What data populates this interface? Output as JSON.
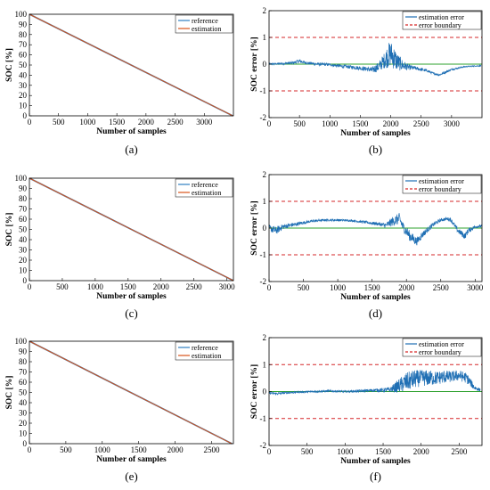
{
  "figure": {
    "colors": {
      "reference": "#2e7fc1",
      "estimation": "#d95319",
      "error_line": "#1f6fb4",
      "zero_line": "#2ca02c",
      "boundary": "#d62728",
      "axes": "#000000"
    }
  },
  "chart_data": [
    {
      "type": "line",
      "caption": "(a)",
      "xlabel": "Number of samples",
      "ylabel": "SOC [%]",
      "xlim": [
        0,
        3500
      ],
      "ylim": [
        0,
        100
      ],
      "xticks": [
        0,
        500,
        1000,
        1500,
        2000,
        2500,
        3000
      ],
      "yticks": [
        0,
        10,
        20,
        30,
        40,
        50,
        60,
        70,
        80,
        90,
        100
      ],
      "legend": "top-right",
      "series": [
        {
          "name": "reference",
          "x": [
            0,
            3490
          ],
          "y": [
            100,
            0
          ]
        },
        {
          "name": "estimation",
          "x": [
            0,
            3490
          ],
          "y": [
            100,
            0
          ]
        }
      ]
    },
    {
      "type": "line",
      "caption": "(b)",
      "xlabel": "Number of samples",
      "ylabel": "SOC error [%]",
      "xlim": [
        0,
        3500
      ],
      "ylim": [
        -2,
        2
      ],
      "xticks": [
        0,
        500,
        1000,
        1500,
        2000,
        2500,
        3000
      ],
      "yticks": [
        -2,
        -1,
        0,
        1,
        2
      ],
      "legend": "top-right",
      "series": [
        {
          "name": "estimation error",
          "x": [
            0,
            200,
            400,
            500,
            600,
            800,
            1000,
            1200,
            1400,
            1600,
            1700,
            1800,
            1900,
            1950,
            2000,
            2050,
            2100,
            2200,
            2300,
            2400,
            2500,
            2600,
            2700,
            2800,
            2900,
            3000,
            3100,
            3200,
            3300,
            3490
          ],
          "y": [
            0.0,
            0.02,
            0.05,
            0.12,
            0.05,
            0.0,
            -0.02,
            -0.08,
            -0.12,
            -0.18,
            -0.22,
            -0.1,
            0.15,
            0.3,
            0.4,
            0.25,
            0.1,
            -0.05,
            -0.12,
            -0.15,
            -0.2,
            -0.25,
            -0.35,
            -0.4,
            -0.3,
            -0.2,
            -0.15,
            -0.1,
            -0.08,
            -0.06
          ],
          "noise": [
            0.03,
            0.04,
            0.05,
            0.08,
            0.05,
            0.06,
            0.05,
            0.06,
            0.07,
            0.08,
            0.12,
            0.18,
            0.3,
            0.45,
            0.5,
            0.45,
            0.35,
            0.2,
            0.1,
            0.07,
            0.06,
            0.05,
            0.04,
            0.04,
            0.05,
            0.04,
            0.03,
            0.02,
            0.02,
            0.02
          ]
        },
        {
          "name": "error boundary",
          "values": [
            1,
            -1
          ]
        }
      ]
    },
    {
      "type": "line",
      "caption": "(c)",
      "xlabel": "Number of samples",
      "ylabel": "SOC [%]",
      "xlim": [
        0,
        3100
      ],
      "ylim": [
        0,
        100
      ],
      "xticks": [
        0,
        500,
        1000,
        1500,
        2000,
        2500,
        3000
      ],
      "yticks": [
        0,
        10,
        20,
        30,
        40,
        50,
        60,
        70,
        80,
        90,
        100
      ],
      "legend": "top-right",
      "series": [
        {
          "name": "reference",
          "x": [
            0,
            3100
          ],
          "y": [
            100,
            0
          ]
        },
        {
          "name": "estimation",
          "x": [
            0,
            3100
          ],
          "y": [
            100,
            0
          ]
        }
      ]
    },
    {
      "type": "line",
      "caption": "(d)",
      "xlabel": "Number of samples",
      "ylabel": "SOC error [%]",
      "xlim": [
        0,
        3100
      ],
      "ylim": [
        -2,
        2
      ],
      "xticks": [
        0,
        500,
        1000,
        1500,
        2000,
        2500,
        3000
      ],
      "yticks": [
        -2,
        -1,
        0,
        1,
        2
      ],
      "legend": "top-right",
      "series": [
        {
          "name": "estimation error",
          "x": [
            0,
            100,
            200,
            400,
            600,
            800,
            1000,
            1200,
            1400,
            1600,
            1700,
            1800,
            1900,
            1950,
            2050,
            2150,
            2250,
            2400,
            2500,
            2600,
            2650,
            2750,
            2850,
            2900,
            3000,
            3100
          ],
          "y": [
            0.0,
            -0.1,
            0.05,
            0.15,
            0.25,
            0.3,
            0.3,
            0.28,
            0.22,
            0.15,
            0.1,
            0.25,
            0.35,
            0.05,
            -0.3,
            -0.5,
            -0.2,
            0.15,
            0.3,
            0.35,
            0.3,
            -0.1,
            -0.3,
            -0.1,
            0.05,
            0.08
          ],
          "noise": [
            0.12,
            0.15,
            0.1,
            0.07,
            0.05,
            0.04,
            0.04,
            0.04,
            0.05,
            0.06,
            0.1,
            0.18,
            0.22,
            0.18,
            0.2,
            0.15,
            0.12,
            0.08,
            0.06,
            0.06,
            0.08,
            0.1,
            0.12,
            0.1,
            0.06,
            0.05
          ]
        },
        {
          "name": "error boundary",
          "values": [
            1,
            -1
          ]
        }
      ]
    },
    {
      "type": "line",
      "caption": "(e)",
      "xlabel": "Number of samples",
      "ylabel": "SOC [%]",
      "xlim": [
        0,
        2800
      ],
      "ylim": [
        0,
        100
      ],
      "xticks": [
        0,
        500,
        1000,
        1500,
        2000,
        2500
      ],
      "yticks": [
        0,
        10,
        20,
        30,
        40,
        50,
        60,
        70,
        80,
        90,
        100
      ],
      "legend": "top-right",
      "series": [
        {
          "name": "reference",
          "x": [
            0,
            2780
          ],
          "y": [
            100,
            0
          ]
        },
        {
          "name": "estimation",
          "x": [
            0,
            2780
          ],
          "y": [
            100,
            0
          ]
        }
      ]
    },
    {
      "type": "line",
      "caption": "(f)",
      "xlabel": "Number of samples",
      "ylabel": "SOC error [%]",
      "xlim": [
        0,
        2800
      ],
      "ylim": [
        -2,
        2
      ],
      "xticks": [
        0,
        500,
        1000,
        1500,
        2000,
        2500
      ],
      "yticks": [
        -2,
        -1,
        0,
        1,
        2
      ],
      "legend": "top-right",
      "series": [
        {
          "name": "estimation error",
          "x": [
            0,
            100,
            200,
            400,
            600,
            800,
            1000,
            1200,
            1400,
            1500,
            1600,
            1700,
            1800,
            1900,
            2000,
            2100,
            2200,
            2300,
            2400,
            2500,
            2600,
            2700,
            2780
          ],
          "y": [
            -0.05,
            -0.08,
            -0.05,
            -0.02,
            0.0,
            0.02,
            0.0,
            0.02,
            0.05,
            0.05,
            0.08,
            0.2,
            0.35,
            0.45,
            0.5,
            0.5,
            0.5,
            0.55,
            0.55,
            0.6,
            0.5,
            0.15,
            0.05
          ],
          "noise": [
            0.04,
            0.05,
            0.04,
            0.03,
            0.04,
            0.04,
            0.04,
            0.05,
            0.06,
            0.08,
            0.1,
            0.25,
            0.35,
            0.35,
            0.3,
            0.3,
            0.25,
            0.25,
            0.2,
            0.2,
            0.2,
            0.1,
            0.05
          ]
        },
        {
          "name": "error boundary",
          "values": [
            1,
            -1
          ]
        }
      ]
    }
  ]
}
